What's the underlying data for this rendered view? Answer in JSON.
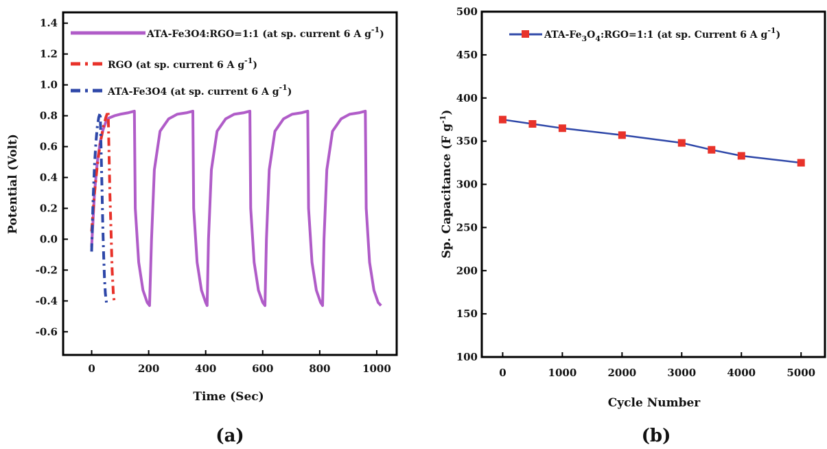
{
  "chart_data": [
    {
      "type": "line",
      "panel_label": "(a)",
      "xlabel": "Time (Sec)",
      "ylabel": "Potential (Volt)",
      "xlim": [
        -100,
        1070
      ],
      "ylim": [
        -0.75,
        1.47
      ],
      "xticks": [
        0,
        200,
        400,
        600,
        800,
        1000
      ],
      "yticks": [
        -0.6,
        -0.4,
        -0.2,
        0.0,
        0.2,
        0.4,
        0.6,
        0.8,
        1.0,
        1.2,
        1.4
      ],
      "ytick_labels": [
        "-0.6",
        "-0.4",
        "-0.2",
        "0.0",
        "0.2",
        "0.4",
        "0.6",
        "0.8",
        "1.0",
        "1.2",
        "1.4"
      ],
      "legend_position": "top-left",
      "series": [
        {
          "name": "ATA-Fe3O4:RGO=1:1 (at sp. current 6 A g-1)",
          "legend_main": "ATA-Fe3O4:RGO=1:1 (at sp. current 6 A g",
          "legend_sup": "-1",
          "legend_tail": ")",
          "color": "#b05cc8",
          "style": "solid",
          "x": [
            0,
            10,
            20,
            30,
            40,
            50,
            60,
            80,
            100,
            130,
            150,
            153,
            165,
            180,
            195,
            203,
            210,
            220,
            240,
            270,
            300,
            335,
            355,
            358,
            370,
            385,
            400,
            405,
            410,
            420,
            440,
            470,
            500,
            535,
            555,
            558,
            570,
            585,
            600,
            608,
            613,
            623,
            643,
            673,
            703,
            738,
            758,
            761,
            773,
            788,
            803,
            810,
            815,
            825,
            845,
            875,
            905,
            940,
            960,
            963,
            975,
            990,
            1005,
            1015
          ],
          "y": [
            -0.05,
            0.3,
            0.5,
            0.63,
            0.71,
            0.76,
            0.785,
            0.8,
            0.81,
            0.82,
            0.83,
            0.2,
            -0.15,
            -0.33,
            -0.41,
            -0.43,
            0.0,
            0.45,
            0.7,
            0.78,
            0.81,
            0.82,
            0.83,
            0.2,
            -0.15,
            -0.33,
            -0.41,
            -0.43,
            0.0,
            0.45,
            0.7,
            0.78,
            0.81,
            0.82,
            0.83,
            0.2,
            -0.15,
            -0.33,
            -0.41,
            -0.43,
            0.0,
            0.45,
            0.7,
            0.78,
            0.81,
            0.82,
            0.83,
            0.2,
            -0.15,
            -0.33,
            -0.41,
            -0.43,
            0.0,
            0.45,
            0.7,
            0.78,
            0.81,
            0.82,
            0.83,
            0.2,
            -0.15,
            -0.33,
            -0.41,
            -0.43
          ]
        },
        {
          "name": "RGO (at sp. current 6 A g-1)",
          "legend_main": "RGO (at sp. current 6 A g",
          "legend_sup": "-1",
          "legend_tail": ")",
          "color": "#e8322a",
          "style": "dashdot",
          "x": [
            0,
            10,
            20,
            30,
            40,
            50,
            58,
            61,
            64,
            68,
            72,
            76,
            80
          ],
          "y": [
            0.05,
            0.3,
            0.48,
            0.62,
            0.72,
            0.79,
            0.83,
            0.55,
            0.3,
            0.05,
            -0.2,
            -0.35,
            -0.42
          ]
        },
        {
          "name": "ATA-Fe3O4 (at sp. current 6 A g-1)",
          "legend_main": "ATA-Fe3O4 (at sp. current 6 A g",
          "legend_sup": "-1",
          "legend_tail": ")",
          "color": "#2e47a8",
          "style": "dashdot",
          "x": [
            0,
            5,
            10,
            15,
            20,
            25,
            30,
            33,
            36,
            39,
            42,
            45,
            48,
            52
          ],
          "y": [
            -0.08,
            0.25,
            0.48,
            0.63,
            0.73,
            0.79,
            0.82,
            0.6,
            0.35,
            0.1,
            -0.1,
            -0.25,
            -0.35,
            -0.41
          ]
        }
      ]
    },
    {
      "type": "line",
      "panel_label": "(b)",
      "xlabel": "Cycle Number",
      "ylabel": "Sp. Capacitance (F g-1)",
      "ylabel_main": "Sp. Capacitance (F g",
      "ylabel_sup": "-1",
      "ylabel_tail": ")",
      "xlim": [
        -350,
        5400
      ],
      "ylim": [
        100,
        500
      ],
      "xticks": [
        0,
        1000,
        2000,
        3000,
        4000,
        5000
      ],
      "yticks": [
        100,
        150,
        200,
        250,
        300,
        350,
        400,
        450,
        500
      ],
      "legend_position": "top-left",
      "series": [
        {
          "name": "ATA-Fe3O4:RGO=1:1 (at sp. Current 6 A g-1)",
          "color": "#2e47a8",
          "marker_color": "#e8322a",
          "marker": "square",
          "x": [
            0,
            500,
            1000,
            2000,
            3000,
            3500,
            4000,
            5000
          ],
          "y": [
            375,
            370,
            365,
            357,
            348,
            340,
            333,
            325
          ]
        }
      ],
      "legend": {
        "prefix": "ATA-Fe",
        "sub1": "3",
        "mid1": "O",
        "sub2": "4",
        "mid2": ":RGO=1:1  (at sp. Current  6 A g",
        "sup": "-1",
        "tail": ")"
      }
    }
  ]
}
